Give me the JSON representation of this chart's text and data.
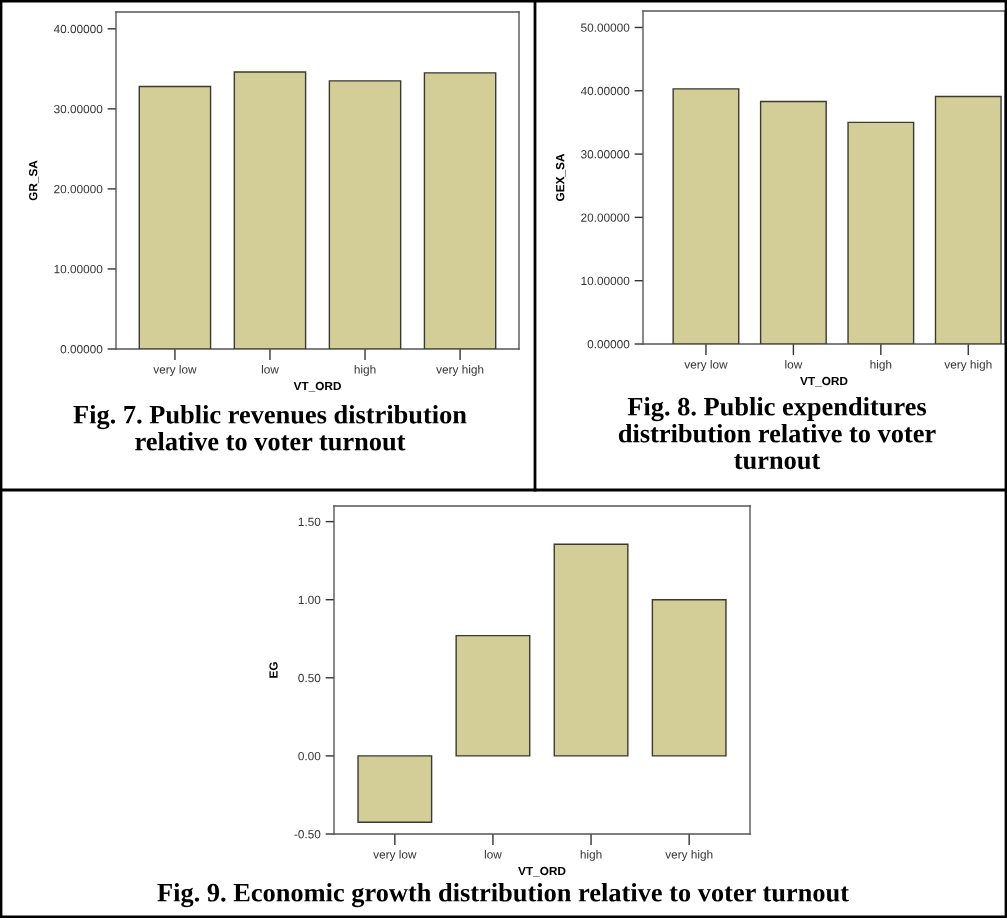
{
  "chart_data": [
    {
      "type": "bar",
      "title": "Fig. 7. Public revenues distribution relative to voter turnout",
      "xlabel": "VT_ORD",
      "ylabel": "GR_SA",
      "categories": [
        "very low",
        "low",
        "high",
        "very high"
      ],
      "values": [
        32.8,
        34.6,
        33.5,
        34.5
      ],
      "color": "#d3cd98",
      "ylim": [
        0,
        42.1
      ],
      "yticks": [
        {
          "value": 0,
          "label": "0.00000"
        },
        {
          "value": 10,
          "label": "10.00000"
        },
        {
          "value": 20,
          "label": "20.00000"
        },
        {
          "value": 30,
          "label": "30.00000"
        },
        {
          "value": 40,
          "label": "40.00000"
        }
      ],
      "grid": false
    },
    {
      "type": "bar",
      "title": "Fig. 8. Public expenditures distribution relative to voter turnout",
      "xlabel": "VT_ORD",
      "ylabel": "GEX_SA",
      "categories": [
        "very low",
        "low",
        "high",
        "very high"
      ],
      "values": [
        40.3,
        38.3,
        35.0,
        39.1
      ],
      "color": "#d3cd98",
      "ylim": [
        0,
        52.6
      ],
      "yticks": [
        {
          "value": 0,
          "label": "0.00000"
        },
        {
          "value": 10,
          "label": "10.00000"
        },
        {
          "value": 20,
          "label": "20.00000"
        },
        {
          "value": 30,
          "label": "30.00000"
        },
        {
          "value": 40,
          "label": "40.00000"
        },
        {
          "value": 50,
          "label": "50.00000"
        }
      ],
      "grid": false
    },
    {
      "type": "bar",
      "title": "Fig. 9. Economic growth distribution relative to voter turnout",
      "xlabel": "VT_ORD",
      "ylabel": "EG",
      "categories": [
        "very low",
        "low",
        "high",
        "very high"
      ],
      "values": [
        -0.425,
        0.77,
        1.355,
        1.0
      ],
      "color": "#d3cd98",
      "ylim": [
        -0.5,
        1.6
      ],
      "yticks": [
        {
          "value": -0.5,
          "label": "-0.50"
        },
        {
          "value": 0,
          "label": "0.00"
        },
        {
          "value": 0.5,
          "label": "0.50"
        },
        {
          "value": 1.0,
          "label": "1.00"
        },
        {
          "value": 1.5,
          "label": "1.50"
        }
      ],
      "grid": false
    }
  ]
}
